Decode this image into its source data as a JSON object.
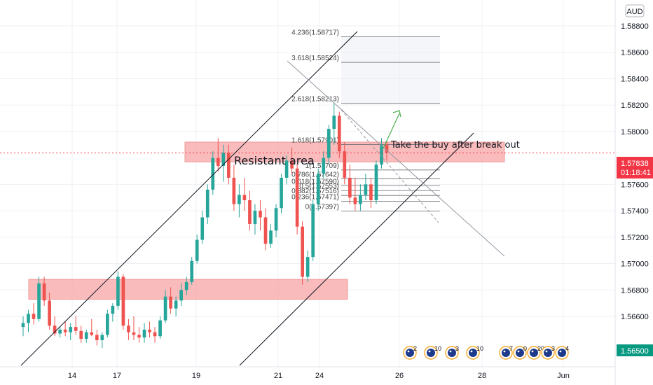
{
  "currency": "AUD",
  "current_price": {
    "value": "1.57838",
    "countdown": "01:18:41",
    "color": "#f23645"
  },
  "secondary_price": {
    "value": "1.56500",
    "color": "#089981"
  },
  "colors": {
    "up": "#26a69a",
    "down": "#ef5350",
    "zone": "#f7a4a4",
    "grid": "#eef0f3"
  },
  "annotations": {
    "resistant_area": "Resistant area",
    "buy_note": "Take the buy after break out"
  },
  "fib_labels": [
    "4.236(1.58717)",
    "3.618(1.58524)",
    "2.618(1.58213)",
    "1.618(1.57901)",
    "1(1.57709)",
    "0.786(1.57642)",
    "0.618(1.57590)",
    "0.5(1.57553)",
    "0.382(1.57516)",
    "0.236(1.57471)",
    "0(1.57397)"
  ],
  "events": [
    {
      "icon": "flag-icon",
      "count": "2"
    },
    {
      "icon": "flag-icon",
      "count": "10"
    },
    {
      "icon": "flag-icon",
      "count": "3"
    },
    {
      "icon": "flag-icon",
      "count": "10"
    },
    {
      "icon": "flag-icon",
      "count": "7"
    },
    {
      "icon": "flag-icon",
      "count": "0"
    },
    {
      "icon": "flag-icon",
      "count": "20"
    },
    {
      "icon": "flag-icon",
      "count": "3"
    },
    {
      "icon": "flag-icon",
      "count": "4"
    }
  ],
  "chart_data": {
    "type": "candlestick",
    "title": "",
    "x_ticks": [
      "14",
      "17",
      "19",
      "21",
      "24",
      "26",
      "28",
      "Jun"
    ],
    "y_ticks": [
      "1.58800",
      "1.58600",
      "1.58400",
      "1.58200",
      "1.58000",
      "1.57600",
      "1.57400",
      "1.57200",
      "1.57000",
      "1.56800",
      "1.56600"
    ],
    "ylim": [
      1.5645,
      1.5893
    ],
    "grid": true,
    "zones": [
      {
        "label": "Resistant area",
        "low": 1.5777,
        "high": 1.5792
      },
      {
        "label": "",
        "low": 1.5673,
        "high": 1.5688
      }
    ],
    "candles": [
      [
        1.5652,
        1.566,
        1.5645,
        1.5655
      ],
      [
        1.5655,
        1.5665,
        1.5648,
        1.5662
      ],
      [
        1.5662,
        1.567,
        1.5654,
        1.5658
      ],
      [
        1.5658,
        1.569,
        1.5656,
        1.5685
      ],
      [
        1.5685,
        1.569,
        1.5668,
        1.5672
      ],
      [
        1.5672,
        1.5678,
        1.565,
        1.5653
      ],
      [
        1.5653,
        1.566,
        1.5645,
        1.5647
      ],
      [
        1.5647,
        1.5652,
        1.5644,
        1.565
      ],
      [
        1.565,
        1.5656,
        1.5645,
        1.5648
      ],
      [
        1.5648,
        1.5655,
        1.5642,
        1.5652
      ],
      [
        1.5652,
        1.566,
        1.5646,
        1.5649
      ],
      [
        1.5649,
        1.5653,
        1.564,
        1.5643
      ],
      [
        1.5643,
        1.565,
        1.564,
        1.5648
      ],
      [
        1.5648,
        1.5658,
        1.5645,
        1.5646
      ],
      [
        1.5646,
        1.565,
        1.5638,
        1.5642
      ],
      [
        1.5642,
        1.5648,
        1.5636,
        1.5646
      ],
      [
        1.5646,
        1.5665,
        1.5644,
        1.5662
      ],
      [
        1.5662,
        1.567,
        1.5656,
        1.5668
      ],
      [
        1.5668,
        1.5694,
        1.5665,
        1.569
      ],
      [
        1.569,
        1.5692,
        1.565,
        1.5653
      ],
      [
        1.5653,
        1.5658,
        1.5642,
        1.5648
      ],
      [
        1.5648,
        1.566,
        1.5642,
        1.5646
      ],
      [
        1.5646,
        1.5652,
        1.564,
        1.5644
      ],
      [
        1.5644,
        1.5655,
        1.564,
        1.565
      ],
      [
        1.565,
        1.5656,
        1.5644,
        1.5648
      ],
      [
        1.5648,
        1.5652,
        1.564,
        1.5645
      ],
      [
        1.5645,
        1.566,
        1.5643,
        1.5657
      ],
      [
        1.5657,
        1.568,
        1.5655,
        1.5675
      ],
      [
        1.5675,
        1.5682,
        1.5662,
        1.5666
      ],
      [
        1.5666,
        1.5675,
        1.566,
        1.5672
      ],
      [
        1.5672,
        1.5685,
        1.5668,
        1.568
      ],
      [
        1.568,
        1.569,
        1.5676,
        1.5686
      ],
      [
        1.5686,
        1.5705,
        1.5684,
        1.5702
      ],
      [
        1.5702,
        1.5722,
        1.57,
        1.5718
      ],
      [
        1.5718,
        1.574,
        1.5715,
        1.5735
      ],
      [
        1.5735,
        1.576,
        1.573,
        1.5756
      ],
      [
        1.5756,
        1.5785,
        1.5752,
        1.578
      ],
      [
        1.578,
        1.5795,
        1.577,
        1.5774
      ],
      [
        1.5774,
        1.579,
        1.5762,
        1.5784
      ],
      [
        1.5784,
        1.579,
        1.576,
        1.5765
      ],
      [
        1.5765,
        1.5775,
        1.574,
        1.5745
      ],
      [
        1.5745,
        1.576,
        1.5735,
        1.5752
      ],
      [
        1.5752,
        1.5765,
        1.574,
        1.5748
      ],
      [
        1.5748,
        1.5755,
        1.5725,
        1.573
      ],
      [
        1.573,
        1.5745,
        1.5722,
        1.574
      ],
      [
        1.574,
        1.5748,
        1.5725,
        1.5735
      ],
      [
        1.5735,
        1.5742,
        1.571,
        1.5715
      ],
      [
        1.5715,
        1.573,
        1.5712,
        1.5725
      ],
      [
        1.5725,
        1.5745,
        1.572,
        1.5742
      ],
      [
        1.5742,
        1.5768,
        1.5738,
        1.5765
      ],
      [
        1.5765,
        1.5782,
        1.576,
        1.5778
      ],
      [
        1.5778,
        1.5788,
        1.5768,
        1.5772
      ],
      [
        1.5772,
        1.5776,
        1.5722,
        1.5728
      ],
      [
        1.5728,
        1.5732,
        1.5684,
        1.569
      ],
      [
        1.569,
        1.571,
        1.5686,
        1.5705
      ],
      [
        1.5705,
        1.5748,
        1.5702,
        1.5745
      ],
      [
        1.5745,
        1.5772,
        1.574,
        1.5768
      ],
      [
        1.5768,
        1.5785,
        1.5765,
        1.578
      ],
      [
        1.578,
        1.5805,
        1.5776,
        1.5802
      ],
      [
        1.5802,
        1.5822,
        1.579,
        1.5812
      ],
      [
        1.5812,
        1.5815,
        1.578,
        1.5785
      ],
      [
        1.5785,
        1.5792,
        1.576,
        1.5765
      ],
      [
        1.5765,
        1.5775,
        1.5745,
        1.575
      ],
      [
        1.575,
        1.5765,
        1.574,
        1.5745
      ],
      [
        1.5745,
        1.576,
        1.574,
        1.5752
      ],
      [
        1.5752,
        1.5768,
        1.5748,
        1.576
      ],
      [
        1.576,
        1.5765,
        1.5742,
        1.5748
      ],
      [
        1.5748,
        1.5778,
        1.5745,
        1.5775
      ],
      [
        1.5775,
        1.5795,
        1.5772,
        1.579
      ],
      [
        1.579,
        1.5793,
        1.5778,
        1.5784
      ]
    ]
  }
}
